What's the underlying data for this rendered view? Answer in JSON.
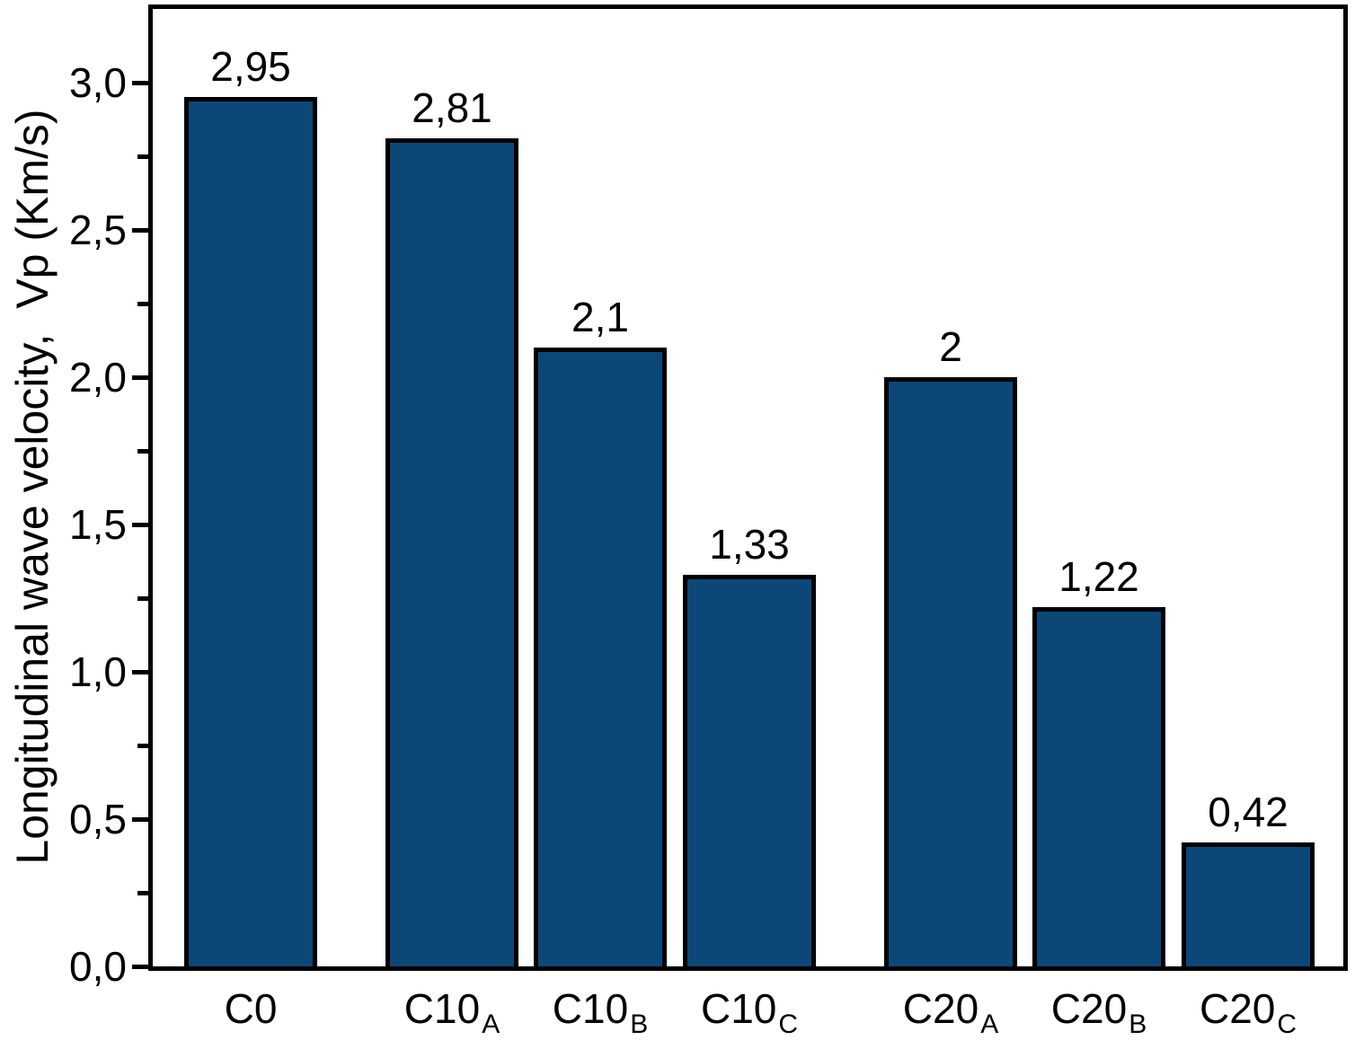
{
  "chart_data": {
    "type": "bar",
    "title": "",
    "xlabel": "",
    "ylabel": "Longitudinal wave velocity,  Vp (Km/s)",
    "ylim": [
      0,
      3.25
    ],
    "grid": false,
    "legend": null,
    "bar_color": "#0b4878",
    "bar_border_color": "#000000",
    "axis_color": "#000000",
    "decimal_separator": ",",
    "categories": [
      "C0",
      "C10_A",
      "C10_B",
      "C10_C",
      "C20_A",
      "C20_B",
      "C20_C"
    ],
    "category_labels": [
      {
        "main": "C0",
        "sub": ""
      },
      {
        "main": "C10",
        "sub": "A"
      },
      {
        "main": "C10",
        "sub": "B"
      },
      {
        "main": "C10",
        "sub": "C"
      },
      {
        "main": "C20",
        "sub": "A"
      },
      {
        "main": "C20",
        "sub": "B"
      },
      {
        "main": "C20",
        "sub": "C"
      }
    ],
    "values": [
      2.95,
      2.81,
      2.1,
      1.33,
      2,
      1.22,
      0.42
    ],
    "value_labels": [
      "2,95",
      "2,81",
      "2,1",
      "1,33",
      "2",
      "1,22",
      "0,42"
    ],
    "groups": [
      [
        0
      ],
      [
        1,
        2,
        3
      ],
      [
        4,
        5,
        6
      ]
    ],
    "y_major_ticks": [
      {
        "value": 0.0,
        "label": "0,0"
      },
      {
        "value": 0.5,
        "label": "0,5"
      },
      {
        "value": 1.0,
        "label": "1,0"
      },
      {
        "value": 1.5,
        "label": "1,5"
      },
      {
        "value": 2.0,
        "label": "2,0"
      },
      {
        "value": 2.5,
        "label": "2,5"
      },
      {
        "value": 3.0,
        "label": "3,0"
      }
    ],
    "y_minor_ticks": [
      0.25,
      0.75,
      1.25,
      1.75,
      2.25,
      2.75
    ]
  }
}
